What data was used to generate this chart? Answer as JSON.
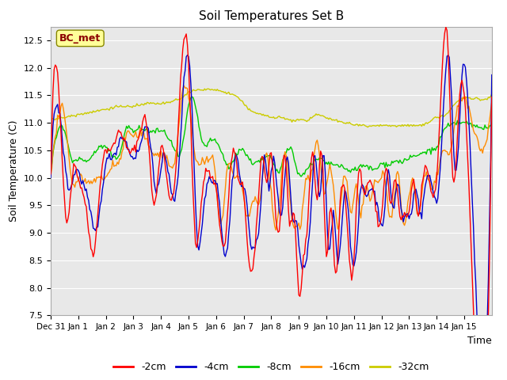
{
  "title": "Soil Temperatures Set B",
  "xlabel": "Time",
  "ylabel": "Soil Temperature (C)",
  "ylim": [
    7.5,
    12.75
  ],
  "yticks": [
    7.5,
    8.0,
    8.5,
    9.0,
    9.5,
    10.0,
    10.5,
    11.0,
    11.5,
    12.0,
    12.5
  ],
  "bg_color": "#e8e8e8",
  "fig_color": "#ffffff",
  "grid_color": "#ffffff",
  "annotation_text": "BC_met",
  "annotation_color": "#8b0000",
  "annotation_bg": "#ffff99",
  "legend_labels": [
    "-2cm",
    "-4cm",
    "-8cm",
    "-16cm",
    "-32cm"
  ],
  "line_colors": [
    "#ff0000",
    "#0000cd",
    "#00cc00",
    "#ff8c00",
    "#cccc00"
  ],
  "xtick_labels": [
    "Dec 31",
    "Jan 1",
    "Jan 2",
    "Jan 3",
    "Jan 4",
    "Jan 5",
    "Jan 6",
    "Jan 7",
    "Jan 8",
    "Jan 9",
    "Jan 10",
    "Jan 11",
    "Jan 12",
    "Jan 13",
    "Jan 14",
    "Jan 15"
  ]
}
